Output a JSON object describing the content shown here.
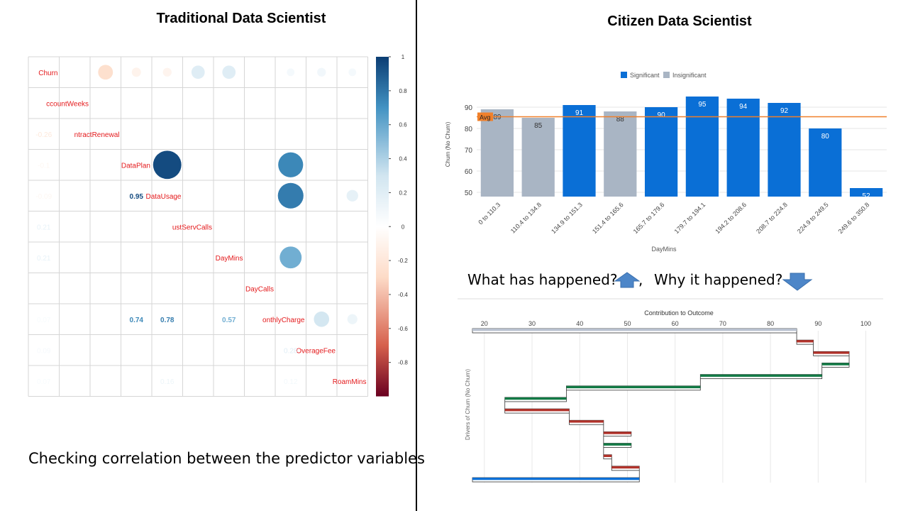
{
  "left": {
    "title": "Traditional Data Scientist",
    "caption": "Checking correlation between the predictor variables"
  },
  "right": {
    "title": "Citizen Data Scientist",
    "question1": "What has happened?",
    "separator": ",",
    "question2": "Why it happened?"
  },
  "colors": {
    "significant": "#0a6fd6",
    "insignificant": "#a9b5c4",
    "avg_line": "#f0802b",
    "positive_driver": "#127a45",
    "negative_driver": "#b2332b",
    "corr_positive_dark": "#0b3d73",
    "corr_negative_dark": "#6a0020",
    "arrow_blue": "#4d86c8"
  },
  "icons": {
    "up": "arrow-up-icon",
    "down": "arrow-down-icon"
  },
  "chart_data": [
    {
      "type": "heatmap",
      "variables": [
        "Churn",
        "AccountWeeks",
        "ContractRenewal",
        "DataPlan",
        "DataUsage",
        "CustServCalls",
        "DayMins",
        "DayCalls",
        "MonthlyCharge",
        "OverageFee",
        "RoamMins"
      ],
      "diagonal_labels": [
        "Churn",
        "ccountWeeks",
        "ntractRenewal",
        "DataPlan",
        "DataUsage",
        "ustServCalls",
        "DayMins",
        "DayCalls",
        "onthlyCharge",
        "OverageFee",
        "RoamMins"
      ],
      "upper_circles": [
        {
          "row": 0,
          "col": 2,
          "value": -0.26
        },
        {
          "row": 0,
          "col": 3,
          "value": -0.1
        },
        {
          "row": 0,
          "col": 4,
          "value": -0.09
        },
        {
          "row": 0,
          "col": 5,
          "value": 0.21
        },
        {
          "row": 0,
          "col": 6,
          "value": 0.21
        },
        {
          "row": 0,
          "col": 8,
          "value": 0.07
        },
        {
          "row": 0,
          "col": 9,
          "value": 0.09
        },
        {
          "row": 0,
          "col": 10,
          "value": 0.07
        },
        {
          "row": 3,
          "col": 4,
          "value": 0.95
        },
        {
          "row": 3,
          "col": 8,
          "value": 0.74
        },
        {
          "row": 4,
          "col": 8,
          "value": 0.78
        },
        {
          "row": 4,
          "col": 10,
          "value": 0.16
        },
        {
          "row": 6,
          "col": 8,
          "value": 0.57
        },
        {
          "row": 8,
          "col": 9,
          "value": 0.28
        },
        {
          "row": 8,
          "col": 10,
          "value": 0.12
        }
      ],
      "lower_labels": [
        {
          "row": 2,
          "col": 0,
          "text": "-0.26",
          "value": -0.26
        },
        {
          "row": 3,
          "col": 0,
          "text": "-0.1",
          "value": -0.1
        },
        {
          "row": 4,
          "col": 0,
          "text": "-0.09",
          "value": -0.09
        },
        {
          "row": 4,
          "col": 3,
          "text": "0.95",
          "value": 0.95
        },
        {
          "row": 5,
          "col": 0,
          "text": "0.21",
          "value": 0.21
        },
        {
          "row": 6,
          "col": 0,
          "text": "0.21",
          "value": 0.21
        },
        {
          "row": 8,
          "col": 0,
          "text": "0.07",
          "value": 0.07
        },
        {
          "row": 8,
          "col": 3,
          "text": "0.74",
          "value": 0.74
        },
        {
          "row": 8,
          "col": 4,
          "text": "0.78",
          "value": 0.78
        },
        {
          "row": 8,
          "col": 6,
          "text": "0.57",
          "value": 0.57
        },
        {
          "row": 9,
          "col": 0,
          "text": "0.09",
          "value": 0.09
        },
        {
          "row": 9,
          "col": 8,
          "text": "0.28",
          "value": 0.28
        },
        {
          "row": 10,
          "col": 0,
          "text": "0.07",
          "value": 0.07
        },
        {
          "row": 10,
          "col": 4,
          "text": "0.16",
          "value": 0.16
        },
        {
          "row": 10,
          "col": 8,
          "text": "0.12",
          "value": 0.12
        }
      ],
      "colorbar": {
        "ticks": [
          1,
          0.8,
          0.6,
          0.4,
          0.2,
          0,
          -0.2,
          -0.4,
          -0.6,
          -0.8
        ],
        "tick_labels": [
          "1",
          "0.8",
          "0.6",
          "0.4",
          "0.2",
          "0",
          "-0.2",
          "-0.4",
          "-0.6",
          "-0.8"
        ],
        "range": [
          -1,
          1
        ]
      }
    },
    {
      "type": "bar",
      "legend": [
        "Significant",
        "Insignificant"
      ],
      "legend_position": "top-center",
      "categories": [
        "0 to 110.3",
        "110.4 to 134.8",
        "134.9 to 151.3",
        "151.4 to 165.6",
        "165.7 to 179.6",
        "179.7 to 194.1",
        "194.2 to 208.6",
        "208.7 to 224.8",
        "224.9 to 249.5",
        "249.6 to 350.8"
      ],
      "values": [
        89,
        85,
        91,
        88,
        90,
        95,
        94,
        92,
        80,
        52
      ],
      "value_labels": [
        "89",
        "85",
        "91",
        "88",
        "90",
        "95",
        "94",
        "92",
        "80",
        "52"
      ],
      "significant": [
        false,
        false,
        true,
        false,
        true,
        true,
        true,
        true,
        true,
        true
      ],
      "avg": 85.5,
      "avg_label": "Avg",
      "xlabel": "DayMins",
      "ylabel": "Churn (No Churn)",
      "yticks": [
        50,
        60,
        70,
        80,
        90
      ],
      "ytick_labels": [
        "50",
        "60",
        "70",
        "80",
        "90"
      ],
      "ylim": [
        48,
        97
      ],
      "grid": true
    },
    {
      "type": "waterfall",
      "title": "Contribution to Outcome",
      "ylabel": "Drivers of Churn (No Churn)",
      "xticks": [
        20,
        30,
        40,
        50,
        60,
        70,
        80,
        90,
        100
      ],
      "xtick_labels": [
        "20",
        "30",
        "40",
        "50",
        "60",
        "70",
        "80",
        "90",
        "100"
      ],
      "xlim": [
        17.5,
        102
      ],
      "segments": [
        {
          "start": 17.5,
          "end": 85.5,
          "kind": "base"
        },
        {
          "start": 85.5,
          "end": 89,
          "kind": "negative"
        },
        {
          "start": 89,
          "end": 96.5,
          "kind": "negative"
        },
        {
          "start": 90.8,
          "end": 96.5,
          "kind": "positive"
        },
        {
          "start": 65.3,
          "end": 90.8,
          "kind": "positive"
        },
        {
          "start": 37.2,
          "end": 65.3,
          "kind": "positive"
        },
        {
          "start": 24.3,
          "end": 37.2,
          "kind": "positive"
        },
        {
          "start": 24.3,
          "end": 37.8,
          "kind": "negative"
        },
        {
          "start": 37.8,
          "end": 45,
          "kind": "negative"
        },
        {
          "start": 45,
          "end": 50.8,
          "kind": "negative"
        },
        {
          "start": 45,
          "end": 50.8,
          "kind": "positive"
        },
        {
          "start": 45,
          "end": 46.7,
          "kind": "negative"
        },
        {
          "start": 46.7,
          "end": 52.5,
          "kind": "negative"
        },
        {
          "start": 17.5,
          "end": 52.5,
          "kind": "total"
        }
      ]
    }
  ]
}
